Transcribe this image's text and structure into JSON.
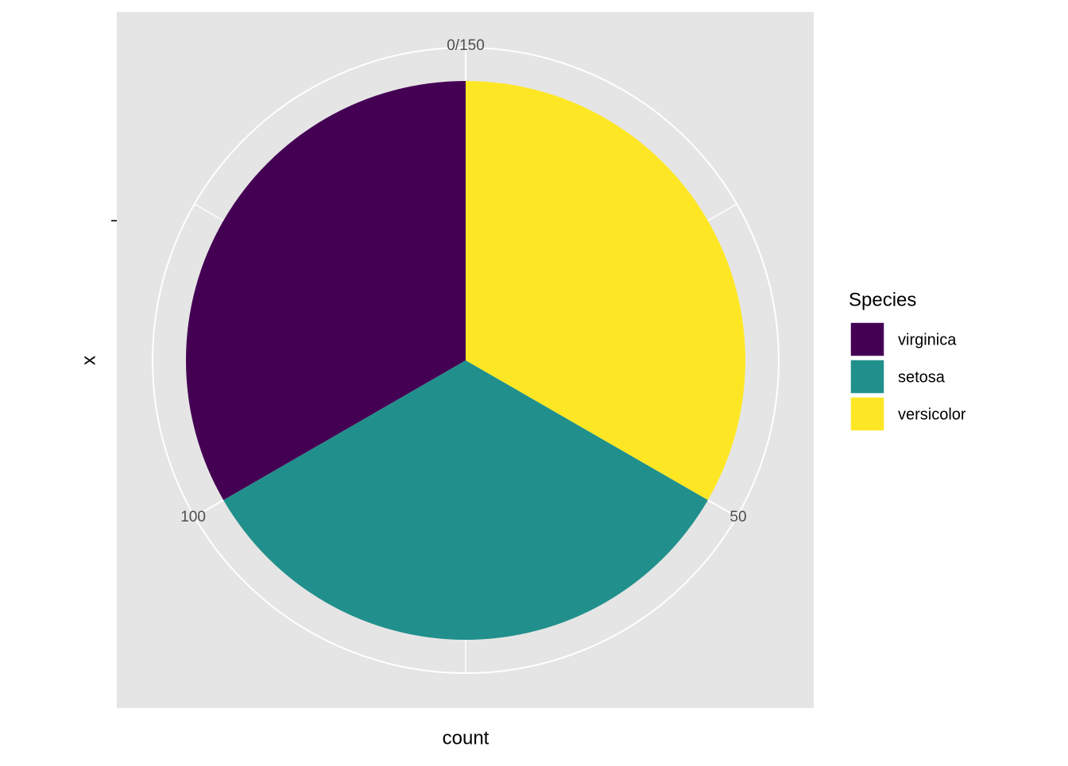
{
  "chart_data": {
    "type": "pie",
    "x_label": "x",
    "y_label": "count",
    "legend_title": "Species",
    "series": [
      {
        "name": "virginica",
        "color": "#440154",
        "values": [
          50
        ]
      },
      {
        "name": "setosa",
        "color": "#21908C",
        "values": [
          50
        ]
      },
      {
        "name": "versicolor",
        "color": "#FDE725",
        "values": [
          50
        ]
      }
    ],
    "ylim": [
      0,
      150
    ],
    "yticks": [
      {
        "value": 0,
        "label": "0/150"
      },
      50,
      100
    ],
    "minor_yticks": [
      25,
      75,
      125
    ],
    "grid": true,
    "legend": "right"
  }
}
